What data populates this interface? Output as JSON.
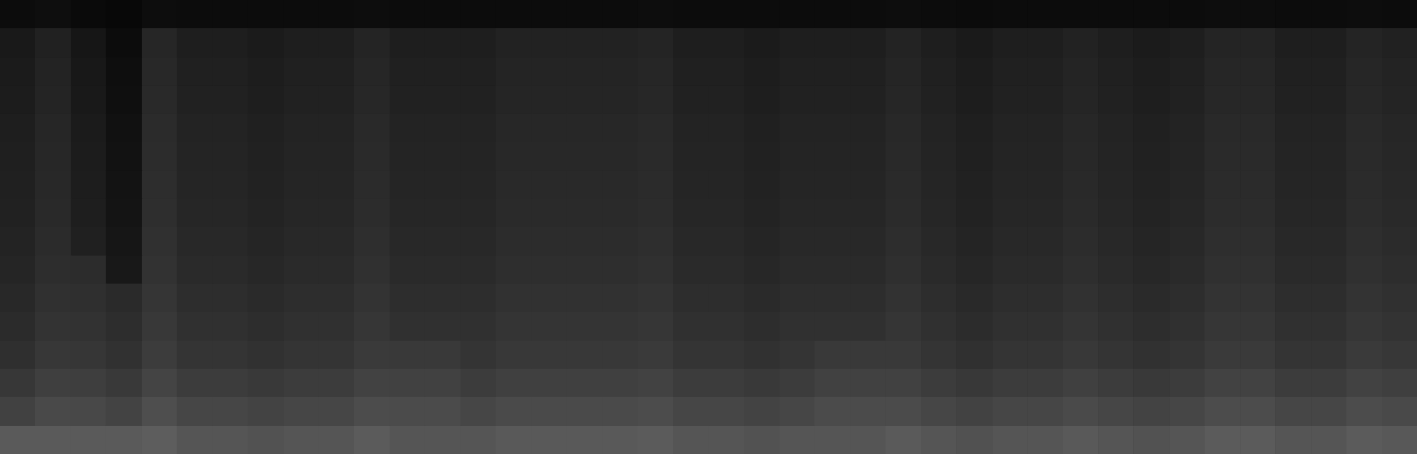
{
  "chart_data": {
    "type": "heatmap",
    "tick_labels": false,
    "grid": false,
    "cells": [
      [
        12,
        14,
        10,
        8,
        13,
        12,
        12,
        12,
        12,
        12,
        13,
        12,
        12,
        12,
        12,
        12,
        12,
        12,
        13,
        12,
        12,
        12,
        12,
        12,
        12,
        13,
        12,
        11,
        12,
        12,
        12,
        12,
        12,
        12,
        13,
        13,
        12,
        12,
        13,
        12
      ],
      [
        25,
        33,
        22,
        12,
        38,
        30,
        30,
        27,
        30,
        30,
        36,
        30,
        30,
        30,
        34,
        34,
        34,
        34,
        36,
        30,
        30,
        27,
        30,
        30,
        30,
        35,
        30,
        26,
        30,
        30,
        34,
        30,
        27,
        30,
        36,
        36,
        30,
        30,
        36,
        33
      ],
      [
        27,
        35,
        24,
        14,
        40,
        32,
        32,
        29,
        32,
        32,
        38,
        32,
        32,
        32,
        36,
        36,
        36,
        36,
        38,
        32,
        32,
        29,
        32,
        32,
        32,
        37,
        32,
        28,
        32,
        32,
        36,
        32,
        29,
        32,
        38,
        38,
        32,
        32,
        38,
        35
      ],
      [
        28,
        36,
        25,
        15,
        41,
        33,
        33,
        30,
        33,
        33,
        39,
        33,
        33,
        33,
        37,
        37,
        37,
        37,
        39,
        33,
        33,
        30,
        33,
        33,
        33,
        38,
        33,
        29,
        33,
        33,
        37,
        33,
        30,
        33,
        39,
        39,
        33,
        33,
        39,
        36
      ],
      [
        30,
        38,
        27,
        17,
        43,
        35,
        35,
        32,
        35,
        35,
        41,
        35,
        35,
        35,
        39,
        39,
        39,
        39,
        41,
        35,
        35,
        32,
        35,
        35,
        35,
        40,
        35,
        31,
        35,
        35,
        39,
        35,
        32,
        35,
        41,
        41,
        35,
        35,
        41,
        38
      ],
      [
        31,
        39,
        28,
        18,
        44,
        36,
        36,
        33,
        36,
        36,
        42,
        36,
        36,
        36,
        40,
        40,
        40,
        40,
        42,
        36,
        36,
        33,
        36,
        36,
        36,
        41,
        36,
        32,
        36,
        36,
        40,
        36,
        33,
        36,
        42,
        42,
        36,
        36,
        42,
        39
      ],
      [
        32,
        40,
        29,
        19,
        45,
        37,
        37,
        34,
        37,
        37,
        43,
        37,
        37,
        37,
        41,
        41,
        41,
        41,
        43,
        37,
        37,
        34,
        37,
        37,
        37,
        42,
        37,
        33,
        37,
        37,
        41,
        37,
        34,
        37,
        43,
        43,
        37,
        37,
        43,
        40
      ],
      [
        33,
        41,
        30,
        20,
        46,
        38,
        38,
        35,
        38,
        38,
        44,
        38,
        38,
        38,
        42,
        42,
        42,
        42,
        44,
        38,
        38,
        35,
        38,
        38,
        38,
        43,
        38,
        34,
        38,
        38,
        42,
        38,
        35,
        38,
        44,
        44,
        38,
        38,
        44,
        41
      ],
      [
        35,
        43,
        32,
        22,
        48,
        40,
        40,
        37,
        40,
        40,
        46,
        40,
        40,
        40,
        44,
        44,
        44,
        44,
        46,
        40,
        40,
        37,
        40,
        40,
        40,
        45,
        40,
        36,
        40,
        40,
        44,
        40,
        37,
        40,
        46,
        46,
        40,
        40,
        46,
        43
      ],
      [
        37,
        45,
        44,
        24,
        50,
        42,
        42,
        39,
        42,
        42,
        48,
        42,
        42,
        42,
        46,
        46,
        46,
        46,
        48,
        42,
        42,
        39,
        42,
        42,
        42,
        47,
        42,
        38,
        42,
        42,
        46,
        42,
        39,
        42,
        48,
        48,
        42,
        42,
        48,
        45
      ],
      [
        40,
        48,
        47,
        42,
        53,
        45,
        45,
        42,
        45,
        45,
        51,
        45,
        45,
        45,
        49,
        49,
        49,
        49,
        51,
        45,
        45,
        42,
        45,
        45,
        45,
        50,
        45,
        41,
        45,
        45,
        49,
        45,
        42,
        45,
        51,
        51,
        45,
        45,
        51,
        48
      ],
      [
        43,
        51,
        50,
        45,
        56,
        48,
        48,
        45,
        48,
        48,
        54,
        48,
        48,
        48,
        52,
        52,
        52,
        52,
        54,
        48,
        48,
        45,
        48,
        48,
        48,
        53,
        48,
        44,
        48,
        48,
        52,
        48,
        45,
        48,
        54,
        54,
        48,
        48,
        54,
        51
      ],
      [
        47,
        55,
        54,
        49,
        60,
        52,
        52,
        49,
        52,
        52,
        58,
        57,
        57,
        52,
        56,
        56,
        56,
        56,
        58,
        52,
        52,
        49,
        52,
        57,
        57,
        57,
        52,
        48,
        52,
        52,
        56,
        52,
        49,
        52,
        58,
        58,
        52,
        52,
        58,
        55
      ],
      [
        55,
        63,
        62,
        57,
        68,
        60,
        60,
        57,
        60,
        60,
        66,
        65,
        65,
        60,
        64,
        64,
        64,
        64,
        66,
        60,
        60,
        57,
        60,
        65,
        65,
        65,
        60,
        56,
        60,
        60,
        64,
        60,
        57,
        60,
        66,
        66,
        60,
        60,
        66,
        63
      ],
      [
        65,
        73,
        72,
        67,
        78,
        70,
        70,
        67,
        70,
        70,
        76,
        75,
        75,
        70,
        74,
        74,
        74,
        74,
        76,
        70,
        70,
        67,
        70,
        75,
        75,
        75,
        70,
        66,
        70,
        70,
        74,
        70,
        67,
        70,
        76,
        76,
        70,
        70,
        76,
        73
      ],
      [
        90,
        90,
        90,
        90,
        93,
        85,
        85,
        82,
        85,
        85,
        91,
        85,
        85,
        85,
        89,
        89,
        89,
        89,
        91,
        85,
        85,
        82,
        85,
        85,
        85,
        90,
        85,
        81,
        85,
        85,
        89,
        85,
        82,
        85,
        91,
        91,
        85,
        85,
        91,
        88
      ]
    ]
  }
}
